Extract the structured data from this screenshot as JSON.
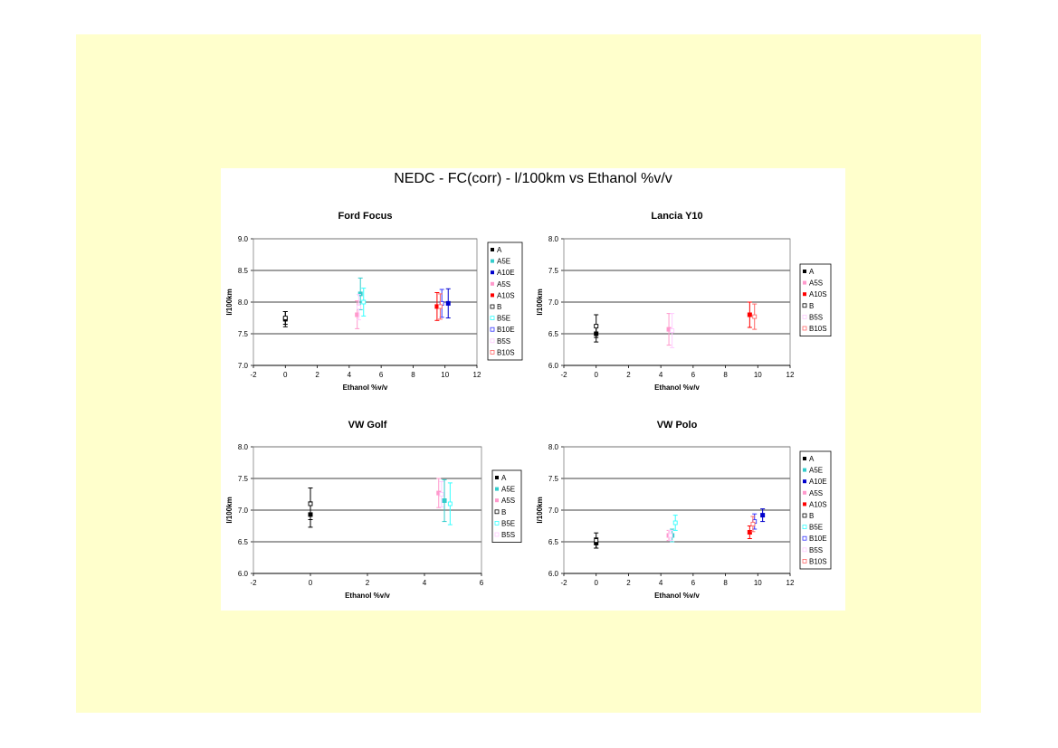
{
  "figure_title": "NEDC - FC(corr) - l/100km  vs  Ethanol %v/v",
  "colors": {
    "slide_background": "#ffffcc",
    "A": "#000000",
    "A5E": "#33cccc",
    "A10E": "#0000cc",
    "A5S": "#ff99cc",
    "A10S": "#ff0000",
    "B": "#000000",
    "B5E": "#33ffff",
    "B10E": "#3333ff",
    "B5S": "#ffccff",
    "B10S": "#ff6666"
  },
  "chart_data": [
    {
      "type": "scatter",
      "title": "Ford Focus",
      "xlabel": "Ethanol %v/v",
      "ylabel": "l/100km",
      "xlim": [
        -2,
        12
      ],
      "ylim": [
        7.0,
        9.0
      ],
      "xticks": [
        "-2",
        "0",
        "2",
        "4",
        "6",
        "8",
        "10",
        "12"
      ],
      "yticks": [
        "7.0",
        "7.5",
        "8.0",
        "8.5",
        "9.0"
      ],
      "grid": "horizontal",
      "legend_position": "right",
      "error_bars": true,
      "series": [
        {
          "name": "A",
          "color": "#000000",
          "marker": "filled",
          "points": [
            {
              "x": 0,
              "y": 7.73,
              "err": 0.12
            }
          ]
        },
        {
          "name": "A5E",
          "color": "#33cccc",
          "marker": "filled",
          "points": [
            {
              "x": 4.7,
              "y": 8.13,
              "err": 0.25
            }
          ]
        },
        {
          "name": "A10E",
          "color": "#0000cc",
          "marker": "filled",
          "points": [
            {
              "x": 10.2,
              "y": 7.98,
              "err": 0.23
            }
          ]
        },
        {
          "name": "A5S",
          "color": "#ff99cc",
          "marker": "filled",
          "points": [
            {
              "x": 4.5,
              "y": 7.8,
              "err": 0.22
            }
          ]
        },
        {
          "name": "A10S",
          "color": "#ff0000",
          "marker": "filled",
          "points": [
            {
              "x": 9.5,
              "y": 7.93,
              "err": 0.22
            }
          ]
        },
        {
          "name": "B",
          "color": "#000000",
          "marker": "open",
          "points": [
            {
              "x": 0,
              "y": 7.75,
              "err": 0.1
            }
          ]
        },
        {
          "name": "B5E",
          "color": "#33ffff",
          "marker": "open",
          "points": [
            {
              "x": 4.9,
              "y": 8.0,
              "err": 0.22
            }
          ]
        },
        {
          "name": "B10E",
          "color": "#3333ff",
          "marker": "open",
          "points": [
            {
              "x": 9.8,
              "y": 7.98,
              "err": 0.22
            }
          ]
        },
        {
          "name": "B5S",
          "color": "#ffccff",
          "marker": "open",
          "points": [
            {
              "x": 4.6,
              "y": 7.92,
              "err": 0.2
            }
          ]
        },
        {
          "name": "B10S",
          "color": "#ff6666",
          "marker": "open",
          "points": [
            {
              "x": 9.7,
              "y": 7.93,
              "err": 0.2
            }
          ]
        }
      ]
    },
    {
      "type": "scatter",
      "title": "Lancia Y10",
      "xlabel": "Ethanol %v/v",
      "ylabel": "l/100km",
      "xlim": [
        -2,
        12
      ],
      "ylim": [
        6.0,
        8.0
      ],
      "xticks": [
        "-2",
        "0",
        "2",
        "4",
        "6",
        "8",
        "10",
        "12"
      ],
      "yticks": [
        "6.0",
        "6.5",
        "7.0",
        "7.5",
        "8.0"
      ],
      "grid": "horizontal",
      "legend_position": "right",
      "error_bars": true,
      "series": [
        {
          "name": "A",
          "color": "#000000",
          "marker": "filled",
          "points": [
            {
              "x": 0,
              "y": 6.5,
              "err": 0.13
            }
          ]
        },
        {
          "name": "A5S",
          "color": "#ff99cc",
          "marker": "filled",
          "points": [
            {
              "x": 4.5,
              "y": 6.57,
              "err": 0.25
            }
          ]
        },
        {
          "name": "A10S",
          "color": "#ff0000",
          "marker": "filled",
          "points": [
            {
              "x": 9.5,
              "y": 6.8,
              "err": 0.2
            }
          ]
        },
        {
          "name": "B",
          "color": "#000000",
          "marker": "open",
          "points": [
            {
              "x": 0,
              "y": 6.62,
              "err": 0.18
            }
          ]
        },
        {
          "name": "B5S",
          "color": "#ffccff",
          "marker": "open",
          "points": [
            {
              "x": 4.7,
              "y": 6.55,
              "err": 0.27
            }
          ]
        },
        {
          "name": "B10S",
          "color": "#ff6666",
          "marker": "open",
          "points": [
            {
              "x": 9.8,
              "y": 6.77,
              "err": 0.2
            }
          ]
        }
      ]
    },
    {
      "type": "scatter",
      "title": "VW Golf",
      "xlabel": "Ethanol %v/v",
      "ylabel": "l/100km",
      "xlim": [
        -2,
        6
      ],
      "ylim": [
        6.0,
        8.0
      ],
      "xticks": [
        "-2",
        "0",
        "2",
        "4",
        "6"
      ],
      "yticks": [
        "6.0",
        "6.5",
        "7.0",
        "7.5",
        "8.0"
      ],
      "grid": "horizontal",
      "legend_position": "right",
      "error_bars": true,
      "series": [
        {
          "name": "A",
          "color": "#000000",
          "marker": "filled",
          "points": [
            {
              "x": 0,
              "y": 6.93,
              "err": 0.2
            }
          ]
        },
        {
          "name": "A5E",
          "color": "#33cccc",
          "marker": "filled",
          "points": [
            {
              "x": 4.7,
              "y": 7.15,
              "err": 0.33
            }
          ]
        },
        {
          "name": "A5S",
          "color": "#ff99cc",
          "marker": "filled",
          "points": [
            {
              "x": 4.5,
              "y": 7.27,
              "err": 0.23
            }
          ]
        },
        {
          "name": "B",
          "color": "#000000",
          "marker": "open",
          "points": [
            {
              "x": 0,
              "y": 7.1,
              "err": 0.25
            }
          ]
        },
        {
          "name": "B5E",
          "color": "#33ffff",
          "marker": "open",
          "points": [
            {
              "x": 4.9,
              "y": 7.1,
              "err": 0.33
            }
          ]
        },
        {
          "name": "B5S",
          "color": "#ffccff",
          "marker": "open",
          "points": [
            {
              "x": 4.6,
              "y": 7.25,
              "err": 0.2
            }
          ]
        }
      ]
    },
    {
      "type": "scatter",
      "title": "VW Polo",
      "xlabel": "Ethanol %v/v",
      "ylabel": "l/100km",
      "xlim": [
        -2,
        12
      ],
      "ylim": [
        6.0,
        8.0
      ],
      "xticks": [
        "-2",
        "0",
        "2",
        "4",
        "6",
        "8",
        "10",
        "12"
      ],
      "yticks": [
        "6.0",
        "6.5",
        "7.0",
        "7.5",
        "8.0"
      ],
      "grid": "horizontal",
      "legend_position": "right",
      "error_bars": true,
      "series": [
        {
          "name": "A",
          "color": "#000000",
          "marker": "filled",
          "points": [
            {
              "x": 0,
              "y": 6.48,
              "err": 0.08
            }
          ]
        },
        {
          "name": "A5E",
          "color": "#33cccc",
          "marker": "filled",
          "points": [
            {
              "x": 4.7,
              "y": 6.6,
              "err": 0.1
            }
          ]
        },
        {
          "name": "A10E",
          "color": "#0000cc",
          "marker": "filled",
          "points": [
            {
              "x": 10.3,
              "y": 6.92,
              "err": 0.1
            }
          ]
        },
        {
          "name": "A5S",
          "color": "#ff99cc",
          "marker": "filled",
          "points": [
            {
              "x": 4.5,
              "y": 6.6,
              "err": 0.08
            }
          ]
        },
        {
          "name": "A10S",
          "color": "#ff0000",
          "marker": "filled",
          "points": [
            {
              "x": 9.5,
              "y": 6.65,
              "err": 0.1
            }
          ]
        },
        {
          "name": "B",
          "color": "#000000",
          "marker": "open",
          "points": [
            {
              "x": 0,
              "y": 6.52,
              "err": 0.12
            }
          ]
        },
        {
          "name": "B5E",
          "color": "#33ffff",
          "marker": "open",
          "points": [
            {
              "x": 4.9,
              "y": 6.8,
              "err": 0.12
            }
          ]
        },
        {
          "name": "B10E",
          "color": "#3333ff",
          "marker": "open",
          "points": [
            {
              "x": 9.8,
              "y": 6.82,
              "err": 0.12
            }
          ]
        },
        {
          "name": "B5S",
          "color": "#ffccff",
          "marker": "open",
          "points": [
            {
              "x": 4.6,
              "y": 6.6,
              "err": 0.08
            }
          ]
        },
        {
          "name": "B10S",
          "color": "#ff6666",
          "marker": "open",
          "points": [
            {
              "x": 9.7,
              "y": 6.78,
              "err": 0.12
            }
          ]
        }
      ]
    }
  ]
}
